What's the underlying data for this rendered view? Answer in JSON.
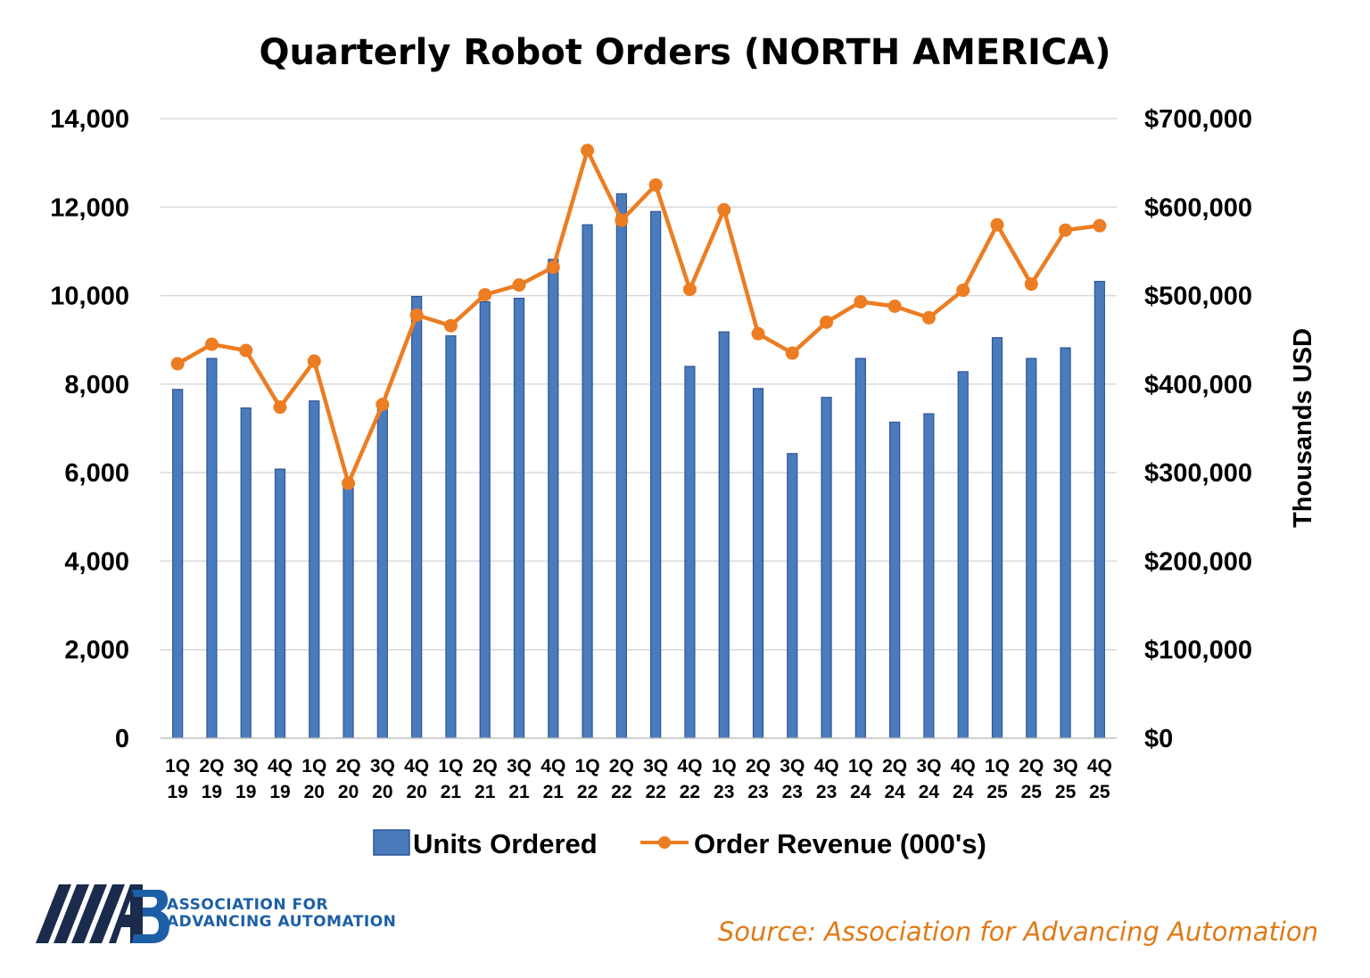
{
  "chart_data": {
    "type": "bar",
    "title": "Quarterly Robot Orders (NORTH AMERICA)",
    "categories": [
      "1Q 19",
      "2Q 19",
      "3Q 19",
      "4Q 19",
      "1Q 20",
      "2Q 20",
      "3Q 20",
      "4Q 20",
      "1Q 21",
      "2Q 21",
      "3Q 21",
      "4Q 21",
      "1Q 22",
      "2Q 22",
      "3Q 22",
      "4Q 22",
      "1Q 23",
      "2Q 23",
      "3Q 23",
      "4Q 23",
      "1Q 24",
      "2Q 24",
      "3Q 24",
      "4Q 24",
      "1Q 25",
      "2Q 25",
      "3Q 25",
      "4Q 25"
    ],
    "series": [
      {
        "name": "Units Ordered",
        "type": "bar",
        "axis": "left",
        "color": "#4a7bbd",
        "values": [
          7880,
          8580,
          7460,
          6080,
          7620,
          5750,
          7530,
          9980,
          9090,
          9860,
          9940,
          10820,
          11600,
          12300,
          11900,
          8400,
          9180,
          7900,
          6430,
          7700,
          8580,
          7140,
          7330,
          8280,
          9050,
          8580,
          8820,
          10320
        ]
      },
      {
        "name": "Order Revenue (000's)",
        "type": "line",
        "axis": "right",
        "color": "#ec7d22",
        "values": [
          423000,
          445000,
          438000,
          374000,
          426000,
          288000,
          377000,
          478000,
          466000,
          501000,
          512000,
          532000,
          664000,
          585000,
          625000,
          507000,
          597000,
          457000,
          435000,
          470000,
          493000,
          488000,
          475000,
          506000,
          580000,
          513000,
          574000,
          579000
        ]
      }
    ],
    "y_left": {
      "min": 0,
      "max": 14000,
      "ticks": [
        "0",
        "2,000",
        "4,000",
        "6,000",
        "8,000",
        "10,000",
        "12,000",
        "14,000"
      ]
    },
    "y_right": {
      "min": 0,
      "max": 700000,
      "label": "Thousands USD",
      "ticks": [
        "$0",
        "$100,000",
        "$200,000",
        "$300,000",
        "$400,000",
        "$500,000",
        "$600,000",
        "$700,000"
      ]
    },
    "grid": true,
    "legend": {
      "position": "bottom"
    },
    "annotations": {
      "source": "Source: Association for Advancing Automation"
    }
  },
  "logo": {
    "line1": "ASSOCIATION FOR",
    "line2": "ADVANCING AUTOMATION",
    "colors": {
      "navy": "#1b2b4b",
      "blue": "#1d5fa6"
    }
  }
}
